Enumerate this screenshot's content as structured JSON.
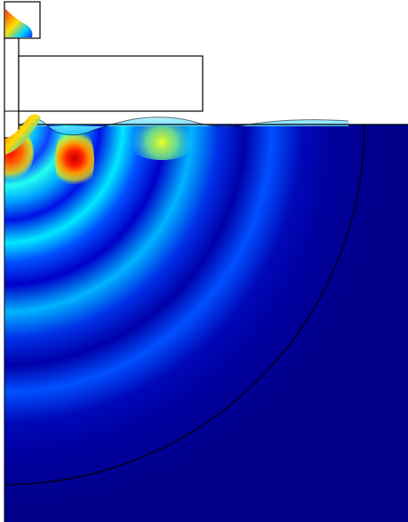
{
  "figure": {
    "colormap": "jet",
    "colors": {
      "deep_blue": "#00008b",
      "blue": "#0000ff",
      "cyan": "#00ffff",
      "yellow": "#ffff00",
      "red": "#ff0000",
      "outline": "#000000",
      "background": "#ffffff"
    }
  }
}
